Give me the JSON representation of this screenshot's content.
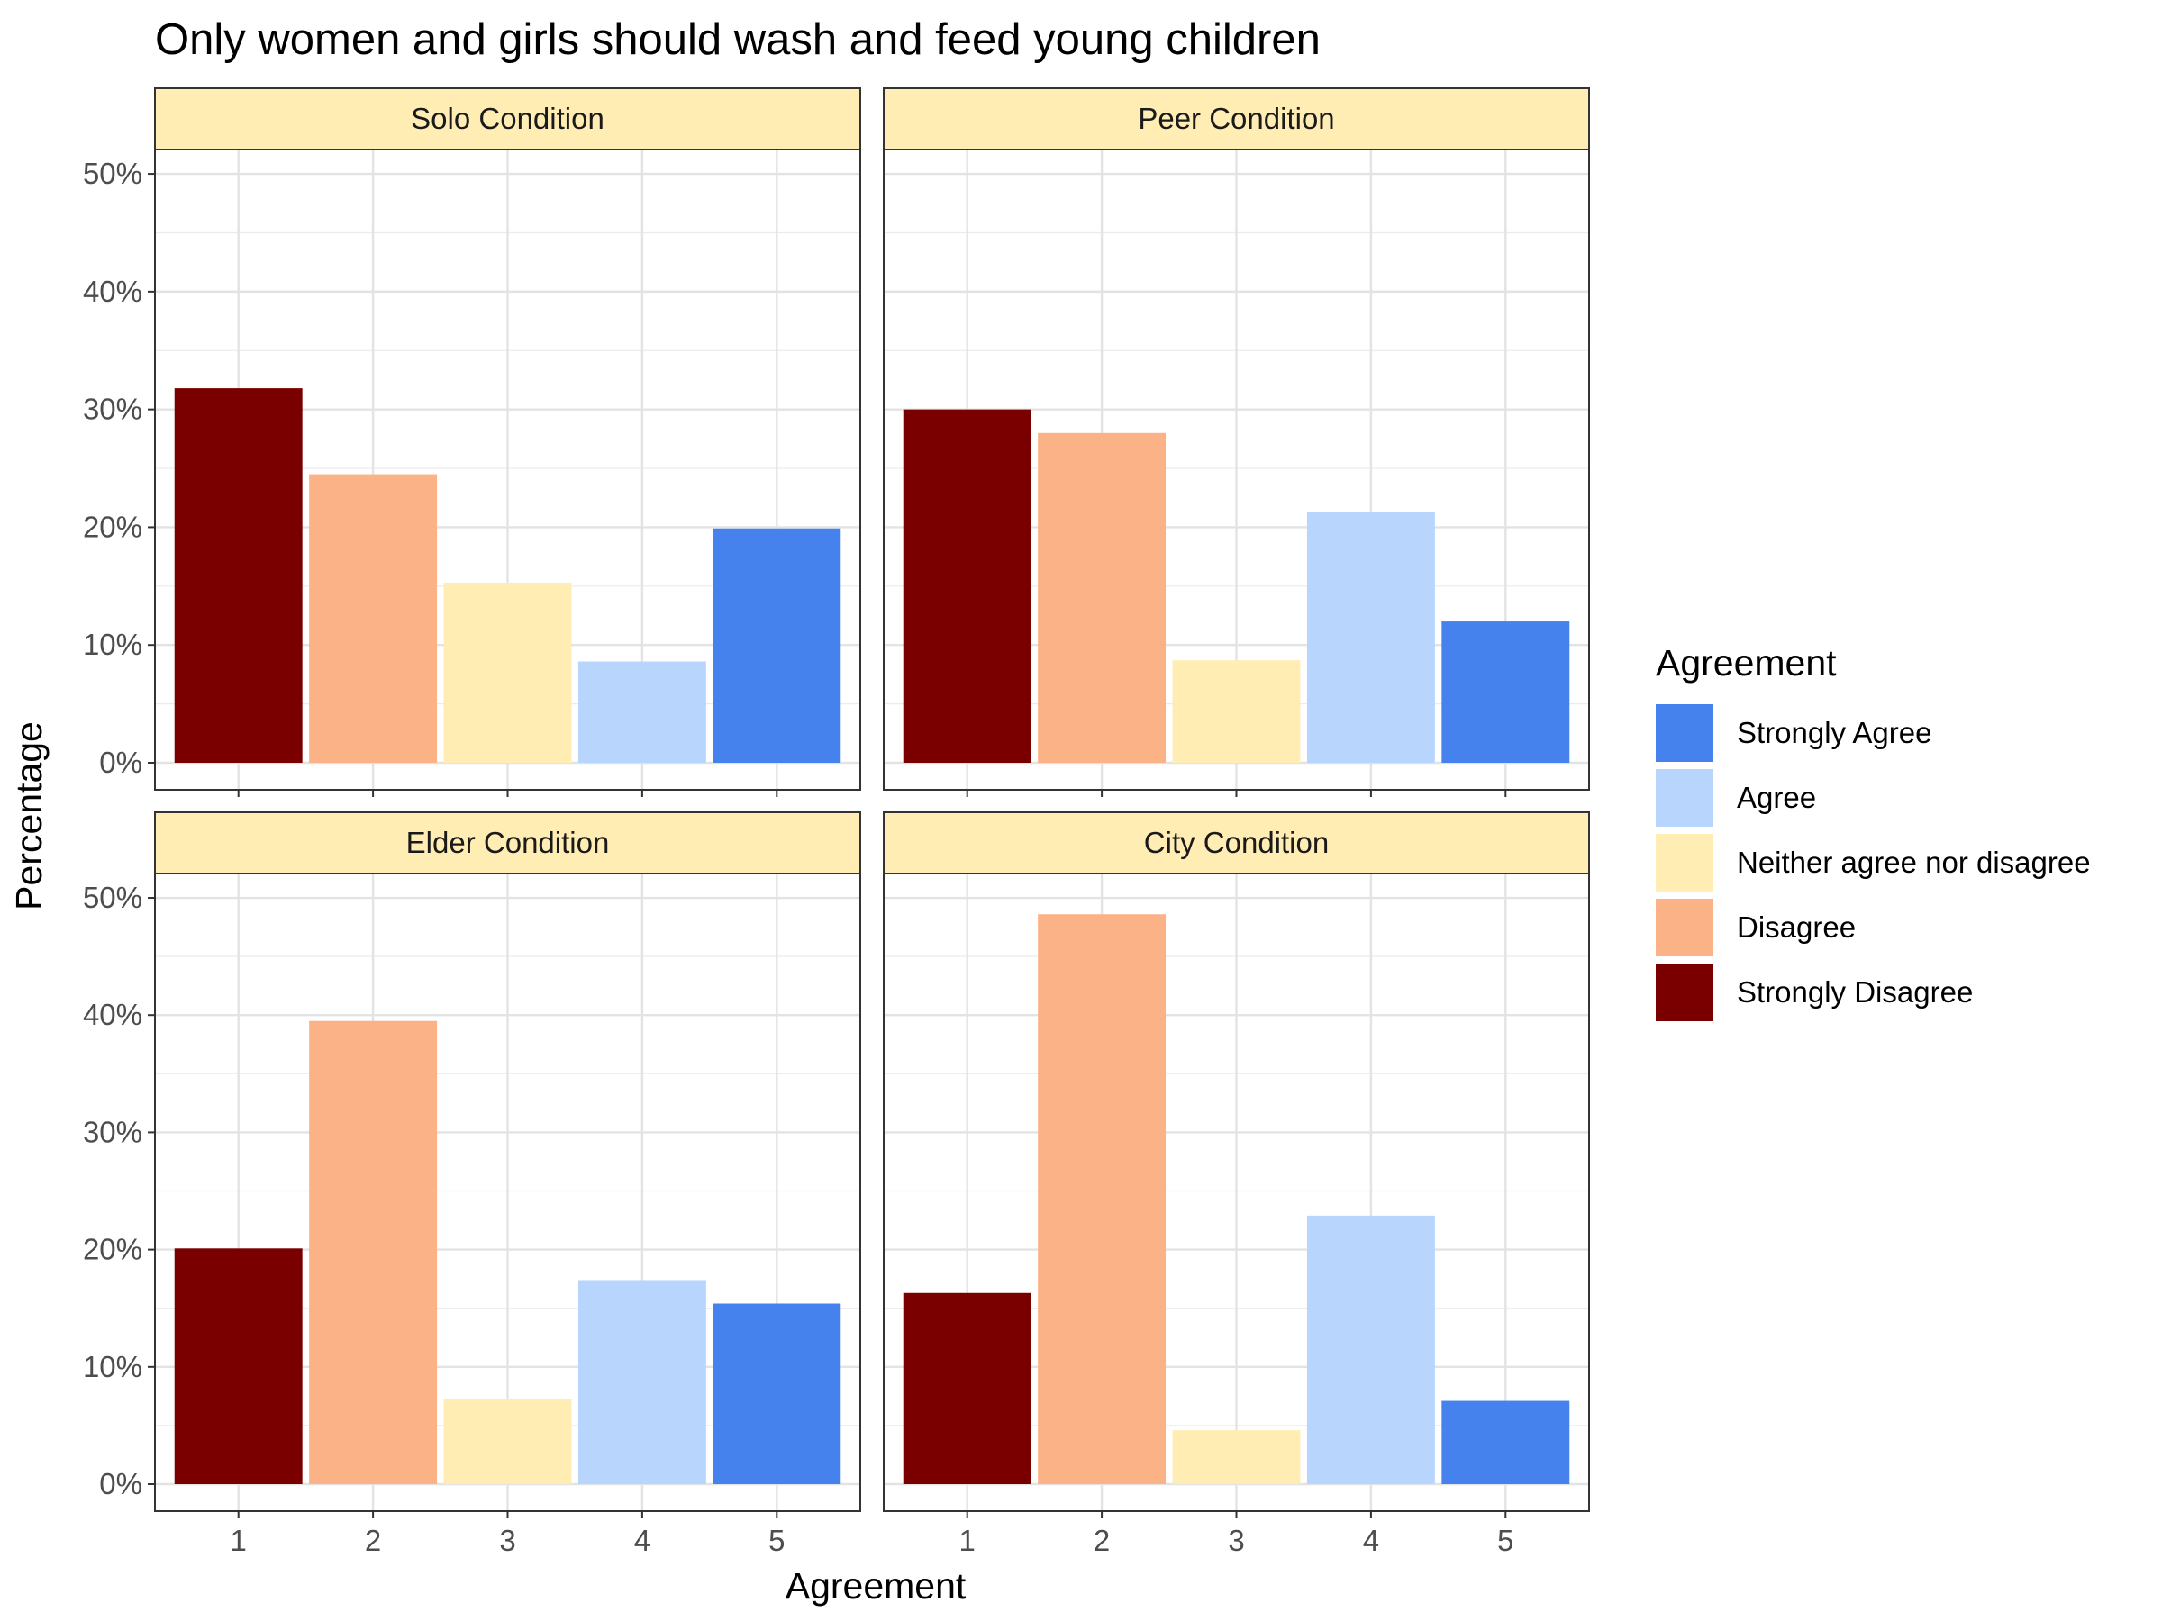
{
  "chart_data": {
    "type": "bar",
    "title": "Only women and girls should wash and feed young children",
    "xlabel": "Agreement",
    "ylabel": "Percentage",
    "categories": [
      "1",
      "2",
      "3",
      "4",
      "5"
    ],
    "ylim": [
      0,
      0.51
    ],
    "yticks": [
      0,
      0.1,
      0.2,
      0.3,
      0.4,
      0.5
    ],
    "ytick_labels": [
      "0%",
      "10%",
      "20%",
      "30%",
      "40%",
      "50%"
    ],
    "grid": true,
    "legend": {
      "title": "Agreement",
      "position": "right",
      "entries": [
        {
          "label": "Strongly Agree",
          "color": "#4682EE"
        },
        {
          "label": "Agree",
          "color": "#B8D6FD"
        },
        {
          "label": "Neither agree nor disagree",
          "color": "#FFEDB4"
        },
        {
          "label": "Disagree",
          "color": "#FCB287"
        },
        {
          "label": "Strongly Disagree",
          "color": "#7A0000"
        }
      ]
    },
    "category_colors": [
      "#7A0000",
      "#FCB287",
      "#FFEDB4",
      "#B8D6FD",
      "#4682EE"
    ],
    "strip_fill": "#FFEDB4",
    "panels": [
      {
        "name": "Solo Condition",
        "values": [
          0.318,
          0.245,
          0.153,
          0.086,
          0.199
        ]
      },
      {
        "name": "Peer Condition",
        "values": [
          0.3,
          0.28,
          0.087,
          0.213,
          0.12
        ]
      },
      {
        "name": "Elder Condition",
        "values": [
          0.201,
          0.395,
          0.073,
          0.174,
          0.154
        ]
      },
      {
        "name": "City Condition",
        "values": [
          0.163,
          0.486,
          0.046,
          0.229,
          0.071
        ]
      }
    ]
  }
}
